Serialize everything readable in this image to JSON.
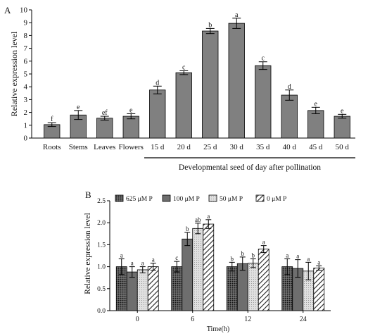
{
  "chart_data": [
    {
      "panel_label": "A",
      "type": "bar",
      "ylabel": "Relative expression level",
      "xlabel": "",
      "ylim": [
        0,
        10
      ],
      "yticks": [
        0,
        1,
        2,
        3,
        4,
        5,
        6,
        7,
        8,
        9,
        10
      ],
      "categories": [
        "Roots",
        "Stems",
        "Leaves",
        "Flowers",
        "15 d",
        "20 d",
        "25 d",
        "30 d",
        "35 d",
        "40 d",
        "45 d",
        "50 d"
      ],
      "values": [
        1.05,
        1.8,
        1.55,
        1.7,
        3.75,
        5.1,
        8.35,
        8.95,
        5.65,
        3.35,
        2.15,
        1.7
      ],
      "errors": [
        0.15,
        0.35,
        0.15,
        0.2,
        0.3,
        0.15,
        0.2,
        0.4,
        0.3,
        0.4,
        0.25,
        0.15
      ],
      "letters": [
        "f",
        "e",
        "ef",
        "e",
        "d",
        "c",
        "b",
        "a",
        "c",
        "d",
        "e",
        "e"
      ],
      "bar_color": "#808080",
      "group_annotation": {
        "text": "Developmental seed of day after pollination",
        "from_category": 4,
        "to_category": 11
      }
    },
    {
      "panel_label": "B",
      "type": "bar",
      "ylabel": "Relative expression level",
      "xlabel": "Time(h)",
      "ylim": [
        0,
        2.5
      ],
      "yticks": [
        0.0,
        0.5,
        1.0,
        1.5,
        2.0,
        2.5
      ],
      "categories": [
        "0",
        "6",
        "12",
        "24"
      ],
      "legend_position": "top",
      "series": [
        {
          "name": "625 μM P",
          "pattern": "dots",
          "values": [
            1.0,
            1.0,
            1.0,
            1.0
          ],
          "errors": [
            0.18,
            0.12,
            0.1,
            0.18
          ],
          "letters": [
            "a",
            "c",
            "b",
            "a"
          ]
        },
        {
          "name": "100 μM P",
          "pattern": "solid",
          "values": [
            0.88,
            1.63,
            1.07,
            0.96
          ],
          "errors": [
            0.12,
            0.15,
            0.15,
            0.2
          ],
          "letters": [
            "a",
            "b",
            "b",
            "a"
          ]
        },
        {
          "name": "50 μM P",
          "pattern": "light",
          "values": [
            0.93,
            1.87,
            1.08,
            0.9
          ],
          "errors": [
            0.07,
            0.12,
            0.1,
            0.2
          ],
          "letters": [
            "a",
            "ab",
            "b",
            "a"
          ]
        },
        {
          "name": "0 μM P",
          "pattern": "hatch",
          "values": [
            1.0,
            1.97,
            1.4,
            0.97
          ],
          "errors": [
            0.08,
            0.1,
            0.08,
            0.05
          ],
          "letters": [
            "a",
            "a",
            "a",
            "a"
          ]
        }
      ]
    }
  ]
}
